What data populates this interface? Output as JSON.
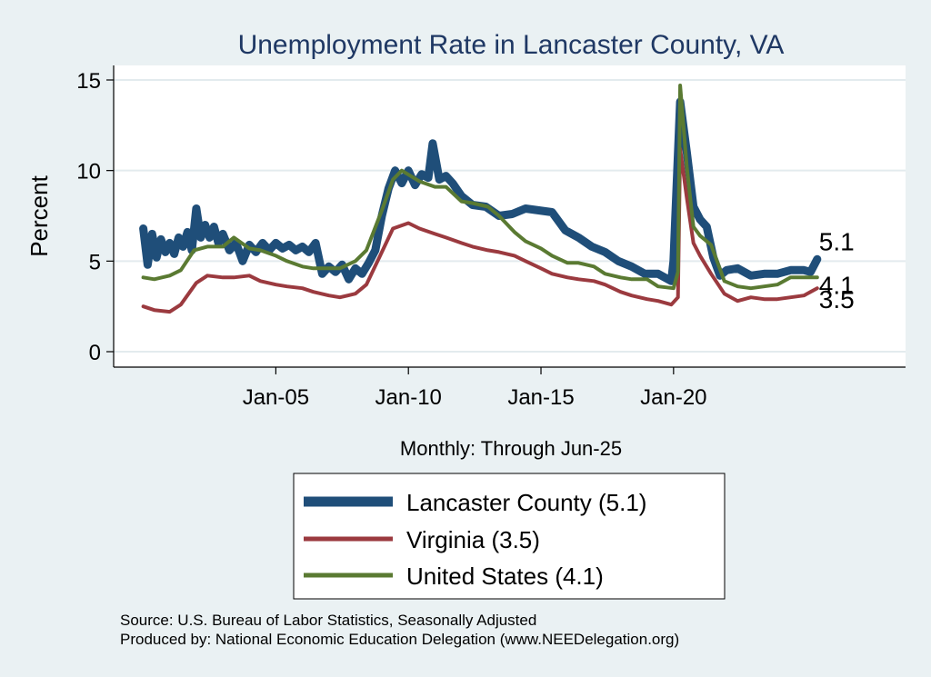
{
  "chart_data": {
    "type": "line",
    "title": "Unemployment Rate in Lancaster  County, VA",
    "xlabel": "Monthly: Through Jun-25",
    "ylabel": "Percent",
    "x_range": [
      "2000-01",
      "2025-06"
    ],
    "ylim": [
      0,
      15.5
    ],
    "x_ticks": [
      {
        "label": "Jan-05",
        "date": "2005-01"
      },
      {
        "label": "Jan-10",
        "date": "2010-01"
      },
      {
        "label": "Jan-15",
        "date": "2015-01"
      },
      {
        "label": "Jan-20",
        "date": "2020-01"
      }
    ],
    "y_ticks": [
      0,
      5,
      10,
      15
    ],
    "grid": true,
    "legend_position": "bottom-center",
    "series": [
      {
        "name": "Lancaster  County (5.1)",
        "color": "#1f4e79",
        "end_label": "5.1",
        "points": [
          [
            "2000-01",
            6.8
          ],
          [
            "2000-03",
            4.8
          ],
          [
            "2000-05",
            6.5
          ],
          [
            "2000-07",
            5.2
          ],
          [
            "2000-09",
            6.2
          ],
          [
            "2000-11",
            5.5
          ],
          [
            "2001-01",
            6.0
          ],
          [
            "2001-03",
            5.4
          ],
          [
            "2001-05",
            6.3
          ],
          [
            "2001-07",
            5.8
          ],
          [
            "2001-09",
            6.6
          ],
          [
            "2001-11",
            5.6
          ],
          [
            "2002-01",
            7.9
          ],
          [
            "2002-03",
            6.3
          ],
          [
            "2002-05",
            7.0
          ],
          [
            "2002-07",
            6.3
          ],
          [
            "2002-09",
            6.9
          ],
          [
            "2002-11",
            6.0
          ],
          [
            "2003-01",
            6.5
          ],
          [
            "2003-04",
            5.6
          ],
          [
            "2003-07",
            6.0
          ],
          [
            "2003-10",
            5.0
          ],
          [
            "2004-01",
            5.9
          ],
          [
            "2004-04",
            5.5
          ],
          [
            "2004-07",
            6.0
          ],
          [
            "2004-10",
            5.6
          ],
          [
            "2005-01",
            6.0
          ],
          [
            "2005-04",
            5.7
          ],
          [
            "2005-07",
            5.9
          ],
          [
            "2005-10",
            5.6
          ],
          [
            "2006-01",
            5.8
          ],
          [
            "2006-04",
            5.5
          ],
          [
            "2006-07",
            6.0
          ],
          [
            "2006-10",
            4.3
          ],
          [
            "2007-01",
            4.7
          ],
          [
            "2007-04",
            4.4
          ],
          [
            "2007-07",
            4.8
          ],
          [
            "2007-10",
            4.0
          ],
          [
            "2008-01",
            4.6
          ],
          [
            "2008-04",
            4.3
          ],
          [
            "2008-07",
            4.9
          ],
          [
            "2008-10",
            5.6
          ],
          [
            "2009-01",
            7.5
          ],
          [
            "2009-04",
            9.0
          ],
          [
            "2009-07",
            10.0
          ],
          [
            "2009-10",
            9.3
          ],
          [
            "2010-01",
            10.0
          ],
          [
            "2010-04",
            9.2
          ],
          [
            "2010-07",
            9.8
          ],
          [
            "2010-10",
            9.6
          ],
          [
            "2010-12",
            11.5
          ],
          [
            "2011-03",
            9.5
          ],
          [
            "2011-06",
            9.7
          ],
          [
            "2011-09",
            9.3
          ],
          [
            "2012-01",
            8.6
          ],
          [
            "2012-06",
            8.1
          ],
          [
            "2012-12",
            8.0
          ],
          [
            "2013-06",
            7.5
          ],
          [
            "2013-12",
            7.6
          ],
          [
            "2014-06",
            7.9
          ],
          [
            "2014-12",
            7.8
          ],
          [
            "2015-06",
            7.7
          ],
          [
            "2015-12",
            6.7
          ],
          [
            "2016-06",
            6.3
          ],
          [
            "2016-12",
            5.8
          ],
          [
            "2017-06",
            5.5
          ],
          [
            "2017-12",
            5.0
          ],
          [
            "2018-06",
            4.7
          ],
          [
            "2018-12",
            4.3
          ],
          [
            "2019-06",
            4.3
          ],
          [
            "2019-12",
            3.9
          ],
          [
            "2020-01",
            5.0
          ],
          [
            "2020-04",
            13.8
          ],
          [
            "2020-07",
            11.0
          ],
          [
            "2020-10",
            8.0
          ],
          [
            "2021-01",
            7.3
          ],
          [
            "2021-04",
            6.9
          ],
          [
            "2021-07",
            5.2
          ],
          [
            "2021-10",
            4.2
          ],
          [
            "2022-01",
            4.5
          ],
          [
            "2022-06",
            4.6
          ],
          [
            "2022-12",
            4.2
          ],
          [
            "2023-06",
            4.3
          ],
          [
            "2023-12",
            4.3
          ],
          [
            "2024-06",
            4.5
          ],
          [
            "2024-12",
            4.5
          ],
          [
            "2025-03",
            4.4
          ],
          [
            "2025-06",
            5.1
          ]
        ]
      },
      {
        "name": "Virginia (3.5)",
        "color": "#9b3a3f",
        "end_label": "3.5",
        "points": [
          [
            "2000-01",
            2.5
          ],
          [
            "2000-06",
            2.3
          ],
          [
            "2001-01",
            2.2
          ],
          [
            "2001-06",
            2.6
          ],
          [
            "2002-01",
            3.8
          ],
          [
            "2002-06",
            4.2
          ],
          [
            "2003-01",
            4.1
          ],
          [
            "2003-06",
            4.1
          ],
          [
            "2004-01",
            4.2
          ],
          [
            "2004-06",
            3.9
          ],
          [
            "2005-01",
            3.7
          ],
          [
            "2005-06",
            3.6
          ],
          [
            "2006-01",
            3.5
          ],
          [
            "2006-06",
            3.3
          ],
          [
            "2007-01",
            3.1
          ],
          [
            "2007-06",
            3.0
          ],
          [
            "2008-01",
            3.2
          ],
          [
            "2008-06",
            3.7
          ],
          [
            "2009-01",
            5.5
          ],
          [
            "2009-06",
            6.8
          ],
          [
            "2010-01",
            7.1
          ],
          [
            "2010-06",
            6.8
          ],
          [
            "2011-01",
            6.5
          ],
          [
            "2011-06",
            6.3
          ],
          [
            "2012-01",
            6.0
          ],
          [
            "2012-06",
            5.8
          ],
          [
            "2013-01",
            5.6
          ],
          [
            "2013-06",
            5.5
          ],
          [
            "2014-01",
            5.3
          ],
          [
            "2014-06",
            5.0
          ],
          [
            "2015-01",
            4.6
          ],
          [
            "2015-06",
            4.3
          ],
          [
            "2016-01",
            4.1
          ],
          [
            "2016-06",
            4.0
          ],
          [
            "2017-01",
            3.9
          ],
          [
            "2017-06",
            3.7
          ],
          [
            "2018-01",
            3.3
          ],
          [
            "2018-06",
            3.1
          ],
          [
            "2019-01",
            2.9
          ],
          [
            "2019-06",
            2.8
          ],
          [
            "2019-12",
            2.6
          ],
          [
            "2020-03",
            3.0
          ],
          [
            "2020-04",
            11.2
          ],
          [
            "2020-07",
            8.5
          ],
          [
            "2020-10",
            6.0
          ],
          [
            "2021-01",
            5.3
          ],
          [
            "2021-06",
            4.3
          ],
          [
            "2021-12",
            3.2
          ],
          [
            "2022-06",
            2.8
          ],
          [
            "2022-12",
            3.0
          ],
          [
            "2023-06",
            2.9
          ],
          [
            "2023-12",
            2.9
          ],
          [
            "2024-06",
            3.0
          ],
          [
            "2024-12",
            3.1
          ],
          [
            "2025-06",
            3.5
          ]
        ]
      },
      {
        "name": "United States (4.1)",
        "color": "#5a7a32",
        "end_label": "4.1",
        "points": [
          [
            "2000-01",
            4.1
          ],
          [
            "2000-06",
            4.0
          ],
          [
            "2001-01",
            4.2
          ],
          [
            "2001-06",
            4.5
          ],
          [
            "2001-12",
            5.6
          ],
          [
            "2002-06",
            5.8
          ],
          [
            "2003-01",
            5.8
          ],
          [
            "2003-06",
            6.3
          ],
          [
            "2004-01",
            5.7
          ],
          [
            "2004-06",
            5.6
          ],
          [
            "2005-01",
            5.3
          ],
          [
            "2005-06",
            5.0
          ],
          [
            "2006-01",
            4.7
          ],
          [
            "2006-06",
            4.6
          ],
          [
            "2007-01",
            4.6
          ],
          [
            "2007-06",
            4.6
          ],
          [
            "2008-01",
            5.0
          ],
          [
            "2008-06",
            5.6
          ],
          [
            "2009-01",
            7.8
          ],
          [
            "2009-06",
            9.5
          ],
          [
            "2009-10",
            10.0
          ],
          [
            "2010-06",
            9.4
          ],
          [
            "2011-01",
            9.1
          ],
          [
            "2011-06",
            9.1
          ],
          [
            "2012-01",
            8.3
          ],
          [
            "2012-06",
            8.2
          ],
          [
            "2013-01",
            8.0
          ],
          [
            "2013-06",
            7.5
          ],
          [
            "2014-01",
            6.6
          ],
          [
            "2014-06",
            6.1
          ],
          [
            "2015-01",
            5.7
          ],
          [
            "2015-06",
            5.3
          ],
          [
            "2016-01",
            4.9
          ],
          [
            "2016-06",
            4.9
          ],
          [
            "2017-01",
            4.7
          ],
          [
            "2017-06",
            4.3
          ],
          [
            "2018-01",
            4.1
          ],
          [
            "2018-06",
            4.0
          ],
          [
            "2019-01",
            4.0
          ],
          [
            "2019-06",
            3.6
          ],
          [
            "2020-01",
            3.5
          ],
          [
            "2020-03",
            4.4
          ],
          [
            "2020-04",
            14.7
          ],
          [
            "2020-07",
            10.2
          ],
          [
            "2020-10",
            6.9
          ],
          [
            "2021-01",
            6.4
          ],
          [
            "2021-06",
            5.9
          ],
          [
            "2021-12",
            3.9
          ],
          [
            "2022-06",
            3.6
          ],
          [
            "2022-12",
            3.5
          ],
          [
            "2023-06",
            3.6
          ],
          [
            "2023-12",
            3.7
          ],
          [
            "2024-06",
            4.1
          ],
          [
            "2024-12",
            4.1
          ],
          [
            "2025-06",
            4.1
          ]
        ]
      }
    ]
  },
  "source_line": "Source: U.S. Bureau of Labor Statistics, Seasonally Adjusted",
  "produced_line": "Produced by: National Economic Education Delegation (www.NEEDelegation.org)"
}
